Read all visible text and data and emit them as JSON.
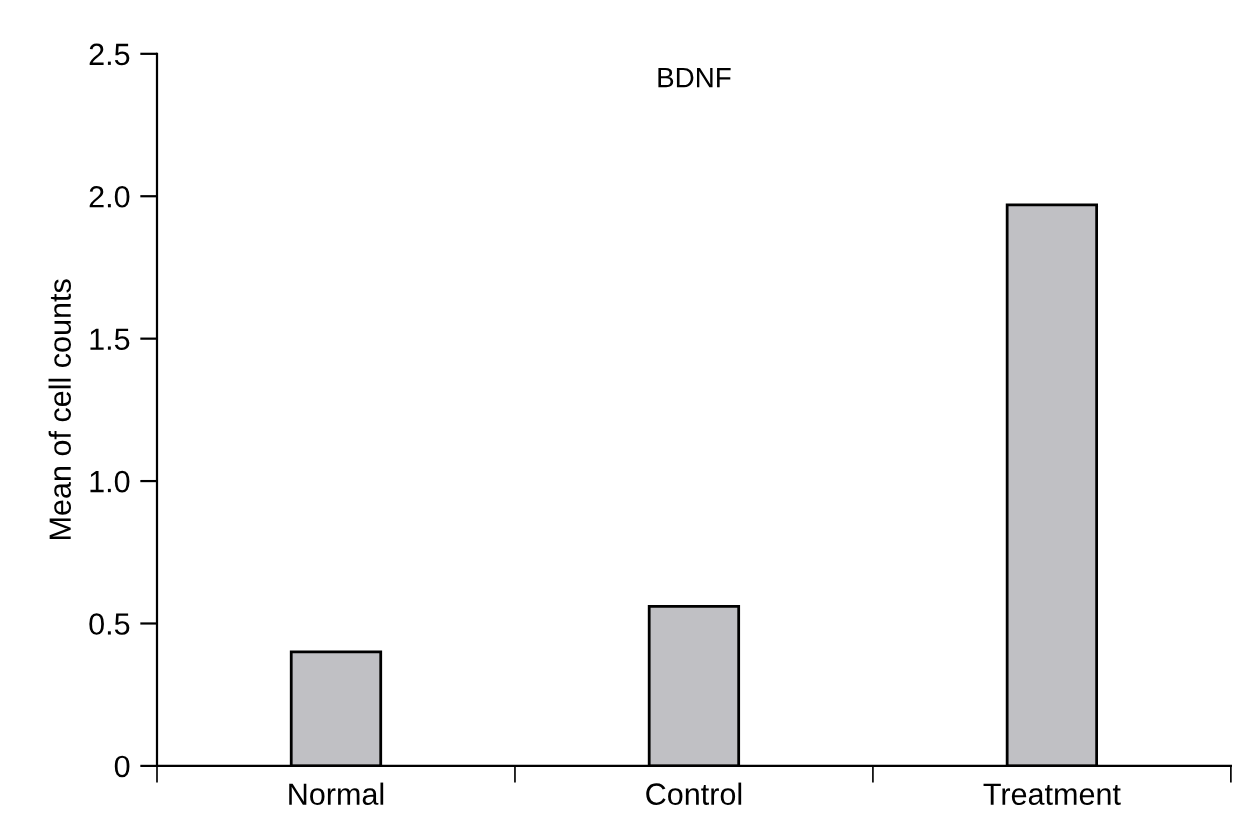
{
  "chart_data": {
    "type": "bar",
    "title": "BDNF",
    "ylabel": "Mean of cell counts",
    "categories": [
      "Normal",
      "Control",
      "Treatment"
    ],
    "values": [
      0.4,
      0.56,
      1.97
    ],
    "color": "#c0c0c4",
    "ylim": [
      0,
      2.5
    ],
    "yticks": [
      0,
      {
        "value": 0.5,
        "label": "0.5"
      },
      {
        "value": 1.0,
        "label": "1.0"
      },
      {
        "value": 1.5,
        "label": "1.5"
      },
      {
        "value": 2.0,
        "label": "2.0"
      },
      {
        "value": 2.5,
        "label": "2.5"
      }
    ],
    "grid": false,
    "legend": false
  }
}
